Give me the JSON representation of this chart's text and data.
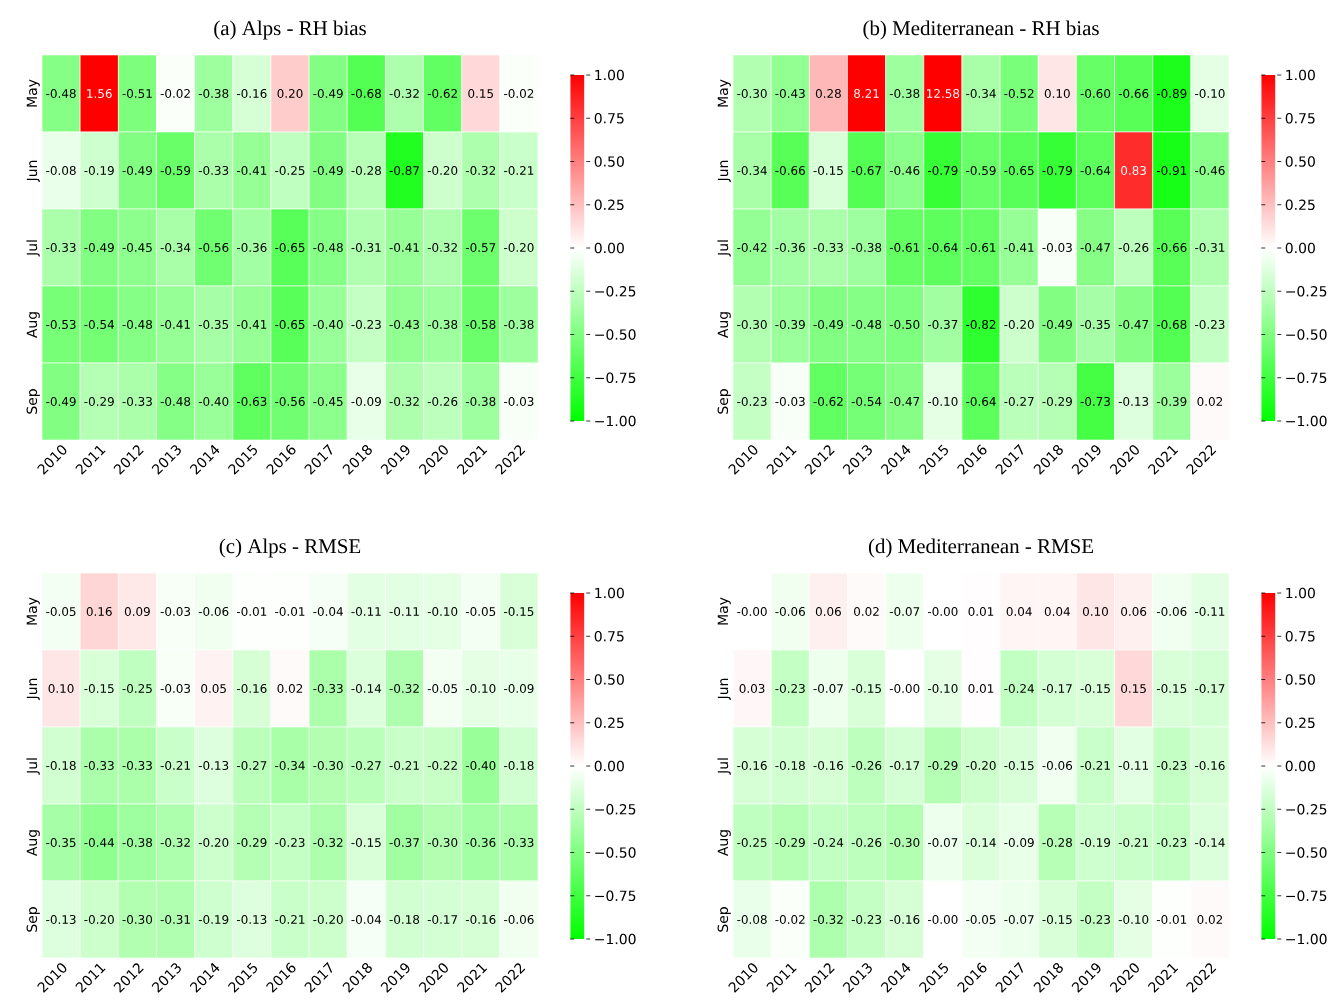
{
  "chart_data": [
    {
      "type": "heatmap",
      "title": "(a) Alps - RH bias",
      "categories": [
        "2010",
        "2011",
        "2012",
        "2013",
        "2014",
        "2015",
        "2016",
        "2017",
        "2018",
        "2019",
        "2020",
        "2021",
        "2022"
      ],
      "y_categories": [
        "May",
        "Jun",
        "Jul",
        "Aug",
        "Sep"
      ],
      "cells": [
        [
          -0.48,
          1.56,
          -0.51,
          -0.02,
          -0.38,
          -0.16,
          0.2,
          -0.49,
          -0.68,
          -0.32,
          -0.62,
          0.15,
          -0.02
        ],
        [
          -0.08,
          -0.19,
          -0.49,
          -0.59,
          -0.33,
          -0.41,
          -0.25,
          -0.49,
          -0.28,
          -0.87,
          -0.2,
          -0.32,
          -0.21
        ],
        [
          -0.33,
          -0.49,
          -0.45,
          -0.34,
          -0.56,
          -0.36,
          -0.65,
          -0.48,
          -0.31,
          -0.41,
          -0.32,
          -0.57,
          -0.2
        ],
        [
          -0.53,
          -0.54,
          -0.48,
          -0.41,
          -0.35,
          -0.41,
          -0.65,
          -0.4,
          -0.23,
          -0.43,
          -0.38,
          -0.58,
          -0.38
        ],
        [
          -0.49,
          -0.29,
          -0.33,
          -0.48,
          -0.4,
          -0.63,
          -0.56,
          -0.45,
          -0.09,
          -0.32,
          -0.26,
          -0.38,
          -0.03
        ]
      ],
      "cell_labels": [
        [
          "-0.48",
          "1.56",
          "-0.51",
          "-0.02",
          "-0.38",
          "-0.16",
          "0.20",
          "-0.49",
          "-0.68",
          "-0.32",
          "-0.62",
          "0.15",
          "-0.02"
        ],
        [
          "-0.08",
          "-0.19",
          "-0.49",
          "-0.59",
          "-0.33",
          "-0.41",
          "-0.25",
          "-0.49",
          "-0.28",
          "-0.87",
          "-0.20",
          "-0.32",
          "-0.21"
        ],
        [
          "-0.33",
          "-0.49",
          "-0.45",
          "-0.34",
          "-0.56",
          "-0.36",
          "-0.65",
          "-0.48",
          "-0.31",
          "-0.41",
          "-0.32",
          "-0.57",
          "-0.20"
        ],
        [
          "-0.53",
          "-0.54",
          "-0.48",
          "-0.41",
          "-0.35",
          "-0.41",
          "-0.65",
          "-0.40",
          "-0.23",
          "-0.43",
          "-0.38",
          "-0.58",
          "-0.38"
        ],
        [
          "-0.49",
          "-0.29",
          "-0.33",
          "-0.48",
          "-0.40",
          "-0.63",
          "-0.56",
          "-0.45",
          "-0.09",
          "-0.32",
          "-0.26",
          "-0.38",
          "-0.03"
        ]
      ],
      "clim": [
        -1,
        1
      ],
      "cticks": [
        {
          "value": -1,
          "label": "−1.00"
        },
        {
          "value": -0.75,
          "label": "−0.75"
        },
        {
          "value": -0.5,
          "label": "−0.50"
        },
        {
          "value": -0.25,
          "label": "−0.25"
        },
        {
          "value": 0,
          "label": "0.00"
        },
        {
          "value": 0.25,
          "label": "0.25"
        },
        {
          "value": 0.5,
          "label": "0.50"
        },
        {
          "value": 0.75,
          "label": "0.75"
        },
        {
          "value": 1,
          "label": "1.00"
        }
      ],
      "data_labels": true
    },
    {
      "type": "heatmap",
      "title": "(b) Mediterranean - RH bias",
      "categories": [
        "2010",
        "2011",
        "2012",
        "2013",
        "2014",
        "2015",
        "2016",
        "2017",
        "2018",
        "2019",
        "2020",
        "2021",
        "2022"
      ],
      "y_categories": [
        "May",
        "Jun",
        "Jul",
        "Aug",
        "Sep"
      ],
      "cells": [
        [
          -0.3,
          -0.43,
          0.28,
          8.21,
          -0.38,
          12.58,
          -0.34,
          -0.52,
          0.1,
          -0.6,
          -0.66,
          -0.89,
          -0.1
        ],
        [
          -0.34,
          -0.66,
          -0.15,
          -0.67,
          -0.46,
          -0.79,
          -0.59,
          -0.65,
          -0.79,
          -0.64,
          0.83,
          -0.91,
          -0.46
        ],
        [
          -0.42,
          -0.36,
          -0.33,
          -0.38,
          -0.61,
          -0.64,
          -0.61,
          -0.41,
          -0.03,
          -0.47,
          -0.26,
          -0.66,
          -0.31
        ],
        [
          -0.3,
          -0.39,
          -0.49,
          -0.48,
          -0.5,
          -0.37,
          -0.82,
          -0.2,
          -0.49,
          -0.35,
          -0.47,
          -0.68,
          -0.23
        ],
        [
          -0.23,
          -0.03,
          -0.62,
          -0.54,
          -0.47,
          -0.1,
          -0.64,
          -0.27,
          -0.29,
          -0.73,
          -0.13,
          -0.39,
          0.02
        ]
      ],
      "cell_labels": [
        [
          "-0.30",
          "-0.43",
          "0.28",
          "8.21",
          "-0.38",
          "12.58",
          "-0.34",
          "-0.52",
          "0.10",
          "-0.60",
          "-0.66",
          "-0.89",
          "-0.10"
        ],
        [
          "-0.34",
          "-0.66",
          "-0.15",
          "-0.67",
          "-0.46",
          "-0.79",
          "-0.59",
          "-0.65",
          "-0.79",
          "-0.64",
          "0.83",
          "-0.91",
          "-0.46"
        ],
        [
          "-0.42",
          "-0.36",
          "-0.33",
          "-0.38",
          "-0.61",
          "-0.64",
          "-0.61",
          "-0.41",
          "-0.03",
          "-0.47",
          "-0.26",
          "-0.66",
          "-0.31"
        ],
        [
          "-0.30",
          "-0.39",
          "-0.49",
          "-0.48",
          "-0.50",
          "-0.37",
          "-0.82",
          "-0.20",
          "-0.49",
          "-0.35",
          "-0.47",
          "-0.68",
          "-0.23"
        ],
        [
          "-0.23",
          "-0.03",
          "-0.62",
          "-0.54",
          "-0.47",
          "-0.10",
          "-0.64",
          "-0.27",
          "-0.29",
          "-0.73",
          "-0.13",
          "-0.39",
          "0.02"
        ]
      ],
      "clim": [
        -1,
        1
      ],
      "cticks": [
        {
          "value": -1,
          "label": "−1.00"
        },
        {
          "value": -0.75,
          "label": "−0.75"
        },
        {
          "value": -0.5,
          "label": "−0.50"
        },
        {
          "value": -0.25,
          "label": "−0.25"
        },
        {
          "value": 0,
          "label": "0.00"
        },
        {
          "value": 0.25,
          "label": "0.25"
        },
        {
          "value": 0.5,
          "label": "0.50"
        },
        {
          "value": 0.75,
          "label": "0.75"
        },
        {
          "value": 1,
          "label": "1.00"
        }
      ],
      "data_labels": true
    },
    {
      "type": "heatmap",
      "title": "(c) Alps - RMSE",
      "categories": [
        "2010",
        "2011",
        "2012",
        "2013",
        "2014",
        "2015",
        "2016",
        "2017",
        "2018",
        "2019",
        "2020",
        "2021",
        "2022"
      ],
      "y_categories": [
        "May",
        "Jun",
        "Jul",
        "Aug",
        "Sep"
      ],
      "cells": [
        [
          -0.05,
          0.16,
          0.09,
          -0.03,
          -0.06,
          -0.01,
          -0.01,
          -0.04,
          -0.11,
          -0.11,
          -0.1,
          -0.05,
          -0.15
        ],
        [
          0.1,
          -0.15,
          -0.25,
          -0.03,
          0.05,
          -0.16,
          0.02,
          -0.33,
          -0.14,
          -0.32,
          -0.05,
          -0.1,
          -0.09
        ],
        [
          -0.18,
          -0.33,
          -0.33,
          -0.21,
          -0.13,
          -0.27,
          -0.34,
          -0.3,
          -0.27,
          -0.21,
          -0.22,
          -0.4,
          -0.18
        ],
        [
          -0.35,
          -0.44,
          -0.38,
          -0.32,
          -0.2,
          -0.29,
          -0.23,
          -0.32,
          -0.15,
          -0.37,
          -0.3,
          -0.36,
          -0.33
        ],
        [
          -0.13,
          -0.2,
          -0.3,
          -0.31,
          -0.19,
          -0.13,
          -0.21,
          -0.2,
          -0.04,
          -0.18,
          -0.17,
          -0.16,
          -0.06
        ]
      ],
      "cell_labels": [
        [
          "-0.05",
          "0.16",
          "0.09",
          "-0.03",
          "-0.06",
          "-0.01",
          "-0.01",
          "-0.04",
          "-0.11",
          "-0.11",
          "-0.10",
          "-0.05",
          "-0.15"
        ],
        [
          "0.10",
          "-0.15",
          "-0.25",
          "-0.03",
          "0.05",
          "-0.16",
          "0.02",
          "-0.33",
          "-0.14",
          "-0.32",
          "-0.05",
          "-0.10",
          "-0.09"
        ],
        [
          "-0.18",
          "-0.33",
          "-0.33",
          "-0.21",
          "-0.13",
          "-0.27",
          "-0.34",
          "-0.30",
          "-0.27",
          "-0.21",
          "-0.22",
          "-0.40",
          "-0.18"
        ],
        [
          "-0.35",
          "-0.44",
          "-0.38",
          "-0.32",
          "-0.20",
          "-0.29",
          "-0.23",
          "-0.32",
          "-0.15",
          "-0.37",
          "-0.30",
          "-0.36",
          "-0.33"
        ],
        [
          "-0.13",
          "-0.20",
          "-0.30",
          "-0.31",
          "-0.19",
          "-0.13",
          "-0.21",
          "-0.20",
          "-0.04",
          "-0.18",
          "-0.17",
          "-0.16",
          "-0.06"
        ]
      ],
      "clim": [
        -1,
        1
      ],
      "cticks": [
        {
          "value": -1,
          "label": "−1.00"
        },
        {
          "value": -0.75,
          "label": "−0.75"
        },
        {
          "value": -0.5,
          "label": "−0.50"
        },
        {
          "value": -0.25,
          "label": "−0.25"
        },
        {
          "value": 0,
          "label": "0.00"
        },
        {
          "value": 0.25,
          "label": "0.25"
        },
        {
          "value": 0.5,
          "label": "0.50"
        },
        {
          "value": 0.75,
          "label": "0.75"
        },
        {
          "value": 1,
          "label": "1.00"
        }
      ],
      "data_labels": true
    },
    {
      "type": "heatmap",
      "title": "(d) Mediterranean - RMSE",
      "categories": [
        "2010",
        "2011",
        "2012",
        "2013",
        "2014",
        "2015",
        "2016",
        "2017",
        "2018",
        "2019",
        "2020",
        "2021",
        "2022"
      ],
      "y_categories": [
        "May",
        "Jun",
        "Jul",
        "Aug",
        "Sep"
      ],
      "cells": [
        [
          0,
          -0.06,
          0.06,
          0.02,
          -0.07,
          0,
          0.01,
          0.04,
          0.04,
          0.1,
          0.06,
          -0.06,
          -0.11
        ],
        [
          0.03,
          -0.23,
          -0.07,
          -0.15,
          0,
          -0.1,
          0.01,
          -0.24,
          -0.17,
          -0.15,
          0.15,
          -0.15,
          -0.17
        ],
        [
          -0.16,
          -0.18,
          -0.16,
          -0.26,
          -0.17,
          -0.29,
          -0.2,
          -0.15,
          -0.06,
          -0.21,
          -0.11,
          -0.23,
          -0.16
        ],
        [
          -0.25,
          -0.29,
          -0.24,
          -0.26,
          -0.3,
          -0.07,
          -0.14,
          -0.09,
          -0.28,
          -0.19,
          -0.21,
          -0.23,
          -0.14
        ],
        [
          -0.08,
          -0.02,
          -0.32,
          -0.23,
          -0.16,
          0,
          -0.05,
          -0.07,
          -0.15,
          -0.23,
          -0.1,
          -0.01,
          0.02
        ]
      ],
      "cell_labels": [
        [
          "-0.00",
          "-0.06",
          "0.06",
          "0.02",
          "-0.07",
          "-0.00",
          "0.01",
          "0.04",
          "0.04",
          "0.10",
          "0.06",
          "-0.06",
          "-0.11"
        ],
        [
          "0.03",
          "-0.23",
          "-0.07",
          "-0.15",
          "-0.00",
          "-0.10",
          "0.01",
          "-0.24",
          "-0.17",
          "-0.15",
          "0.15",
          "-0.15",
          "-0.17"
        ],
        [
          "-0.16",
          "-0.18",
          "-0.16",
          "-0.26",
          "-0.17",
          "-0.29",
          "-0.20",
          "-0.15",
          "-0.06",
          "-0.21",
          "-0.11",
          "-0.23",
          "-0.16"
        ],
        [
          "-0.25",
          "-0.29",
          "-0.24",
          "-0.26",
          "-0.30",
          "-0.07",
          "-0.14",
          "-0.09",
          "-0.28",
          "-0.19",
          "-0.21",
          "-0.23",
          "-0.14"
        ],
        [
          "-0.08",
          "-0.02",
          "-0.32",
          "-0.23",
          "-0.16",
          "-0.00",
          "-0.05",
          "-0.07",
          "-0.15",
          "-0.23",
          "-0.10",
          "-0.01",
          "0.02"
        ]
      ],
      "clim": [
        -1,
        1
      ],
      "cticks": [
        {
          "value": -1,
          "label": "−1.00"
        },
        {
          "value": -0.75,
          "label": "−0.75"
        },
        {
          "value": -0.5,
          "label": "−0.50"
        },
        {
          "value": -0.25,
          "label": "−0.25"
        },
        {
          "value": 0,
          "label": "0.00"
        },
        {
          "value": 0.25,
          "label": "0.25"
        },
        {
          "value": 0.5,
          "label": "0.50"
        },
        {
          "value": 0.75,
          "label": "0.75"
        },
        {
          "value": 1,
          "label": "1.00"
        }
      ],
      "data_labels": true
    }
  ]
}
